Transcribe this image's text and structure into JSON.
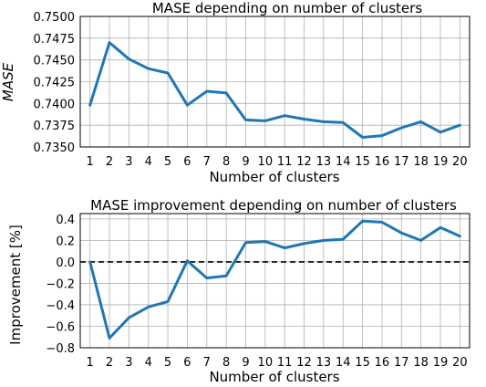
{
  "chart_data": [
    {
      "type": "line",
      "title": "MASE depending on number of clusters",
      "xlabel": "Number of clusters",
      "ylabel": "MASE",
      "x": [
        1,
        2,
        3,
        4,
        5,
        6,
        7,
        8,
        9,
        10,
        11,
        12,
        13,
        14,
        15,
        16,
        17,
        18,
        19,
        20
      ],
      "series": [
        {
          "values": [
            0.7398,
            0.747,
            0.7451,
            0.744,
            0.7435,
            0.7398,
            0.7414,
            0.7412,
            0.7381,
            0.738,
            0.7386,
            0.7382,
            0.7379,
            0.7378,
            0.7361,
            0.7363,
            0.7372,
            0.7379,
            0.7367,
            0.7375
          ]
        }
      ],
      "ylim": [
        0.735,
        0.75
      ],
      "yticks": [
        "0.7350",
        "0.7375",
        "0.7400",
        "0.7425",
        "0.7450",
        "0.7475",
        "0.7500"
      ],
      "xticks": [
        "1",
        "2",
        "3",
        "4",
        "5",
        "6",
        "7",
        "8",
        "9",
        "10",
        "11",
        "12",
        "13",
        "14",
        "15",
        "16",
        "17",
        "18",
        "19",
        "20"
      ],
      "grid": true,
      "color": "#1f77b4"
    },
    {
      "type": "line",
      "title": "MASE improvement depending on number of clusters",
      "xlabel": "Number of clusters",
      "ylabel": "Improvement [%]",
      "x": [
        1,
        2,
        3,
        4,
        5,
        6,
        7,
        8,
        9,
        10,
        11,
        12,
        13,
        14,
        15,
        16,
        17,
        18,
        19,
        20
      ],
      "series": [
        {
          "values": [
            0.0,
            -0.71,
            -0.52,
            -0.42,
            -0.37,
            0.01,
            -0.15,
            -0.13,
            0.18,
            0.19,
            0.13,
            0.17,
            0.2,
            0.21,
            0.38,
            0.37,
            0.27,
            0.2,
            0.32,
            0.24
          ]
        }
      ],
      "reference_line": {
        "y": 0.0,
        "style": "dashed",
        "color": "#000000"
      },
      "ylim": [
        -0.8,
        0.45
      ],
      "yticks": [
        "−0.8",
        "−0.6",
        "−0.4",
        "−0.2",
        "0.0",
        "0.2",
        "0.4"
      ],
      "ytick_values": [
        -0.8,
        -0.6,
        -0.4,
        -0.2,
        0.0,
        0.2,
        0.4
      ],
      "xticks": [
        "1",
        "2",
        "3",
        "4",
        "5",
        "6",
        "7",
        "8",
        "9",
        "10",
        "11",
        "12",
        "13",
        "14",
        "15",
        "16",
        "17",
        "18",
        "19",
        "20"
      ],
      "grid": true,
      "color": "#1f77b4"
    }
  ]
}
